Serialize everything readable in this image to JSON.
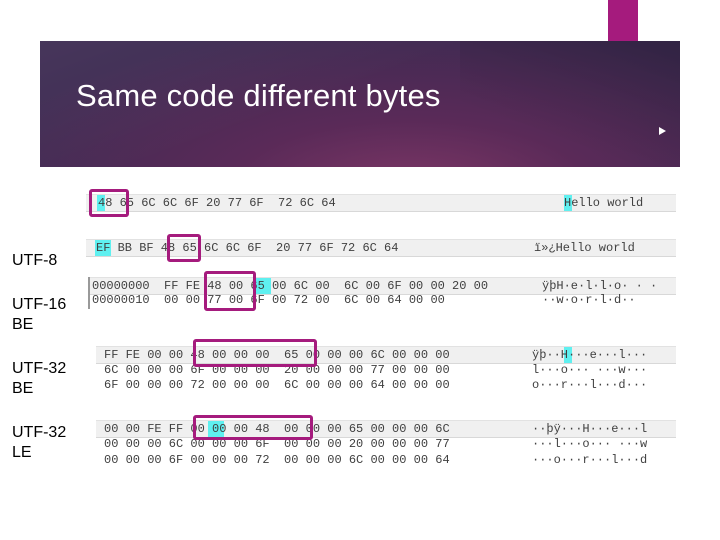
{
  "slide": {
    "title": "Same code different bytes",
    "accent_color": "#a51b7d",
    "labels": {
      "utf8": "UTF-8",
      "utf16_1": "UTF-16",
      "utf16_2": "BE",
      "utf32be_1": "UTF-32",
      "utf32be_2": "BE",
      "utf32le_1": "UTF-32",
      "utf32le_2": "LE"
    }
  },
  "dumps": {
    "ascii": {
      "hex": "48 65 6C 6C 6F 20 77 6F  72 6C 64",
      "text": "Hello world"
    },
    "utf8": {
      "hex": "EF BB BF 48 65 6C 6C 6F  20 77 6F 72 6C 64",
      "text": "ï»¿Hello world"
    },
    "utf16": {
      "row1_hex": "00000000  FF FE 48 00 65 00 6C 00  6C 00 6F 00 00 20 00",
      "row1_text": "ÿþH·e·l·l·o· · ·",
      "row2_hex": "00000010  00 00 77 00 6F 00 72 00  6C 00 64 00 00",
      "row2_text": "··w·o·r·l·d··"
    },
    "utf32be": {
      "row1_hex": "FF FE 00 00 48 00 00 00  65 00 00 00 6C 00 00 00",
      "row1_text": "ÿþ··H···e···l···",
      "row2_hex": "6C 00 00 00 6F 00 00 00  20 00 00 00 77 00 00 00",
      "row2_text": "l···o··· ···w···",
      "row3_hex": "6F 00 00 00 72 00 00 00  6C 00 00 00 64 00 00 00",
      "row3_text": "o···r···l···d···"
    },
    "utf32le": {
      "row1_hex": "00 00 FE FF 00 00 00 48  00 00 00 65 00 00 00 6C",
      "row1_text": "··þÿ···H···e···l",
      "row2_hex": "00 00 00 6C 00 00 00 6F  00 00 00 20 00 00 00 77",
      "row2_text": "···l···o··· ···w",
      "row3_hex": "00 00 00 6F 00 00 00 72  00 00 00 6C 00 00 00 64",
      "row3_text": "···o···r···l···d"
    }
  }
}
